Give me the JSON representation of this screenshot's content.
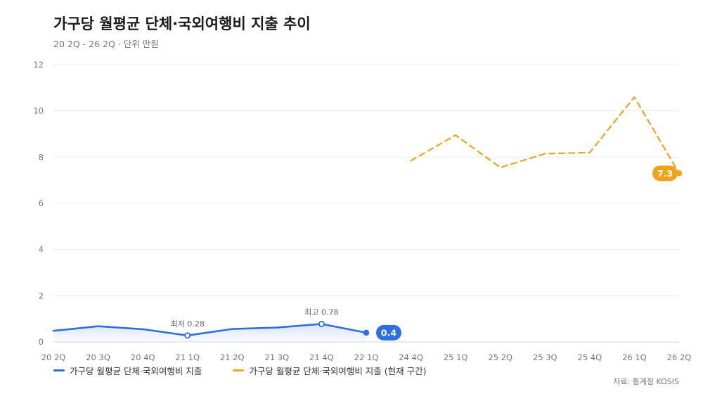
{
  "header": {
    "title": "가구당 월평균 단체·국외여행비 지출 추이",
    "subtitle": "20 2Q - 26 2Q · 단위 만원"
  },
  "footer": {
    "source": "자료: 통계청 KOSIS"
  },
  "colors": {
    "blue": "#2f6fe4",
    "orange": "#f0a21c",
    "grid": "#ececec",
    "axis_text": "#777777"
  },
  "chart_data": {
    "type": "line",
    "categories": [
      "20 2Q",
      "20 3Q",
      "20 4Q",
      "21 1Q",
      "21 2Q",
      "21 3Q",
      "21 4Q",
      "22 1Q",
      "24 4Q",
      "25 1Q",
      "25 2Q",
      "25 3Q",
      "25 4Q",
      "26 1Q",
      "26 2Q"
    ],
    "ylim": [
      0,
      12
    ],
    "yticks": [
      0,
      2,
      4,
      6,
      8,
      10,
      12
    ],
    "grid": true,
    "legend_position": "bottom-left",
    "series": [
      {
        "name": "가구당 월평균 단체·국외여행비 지출",
        "color": "#2f6fe4",
        "style": "solid",
        "area": true,
        "values": [
          0.48,
          0.68,
          0.55,
          0.28,
          0.56,
          0.62,
          0.78,
          0.4,
          null,
          null,
          null,
          null,
          null,
          null,
          null
        ]
      },
      {
        "name": "가구당 월평균 단체·국외여행비 지출 (현재 구간)",
        "color": "#f0a21c",
        "style": "dashed",
        "area": false,
        "values": [
          null,
          null,
          null,
          null,
          null,
          null,
          null,
          null,
          7.85,
          8.95,
          7.55,
          8.15,
          8.2,
          10.6,
          7.3
        ]
      }
    ],
    "annotations": [
      {
        "text": "최저 0.28",
        "series": 0,
        "index": 3
      },
      {
        "text": "최고 0.78",
        "series": 0,
        "index": 6
      }
    ],
    "end_labels": [
      {
        "text": "0.4",
        "series": 0,
        "index": 7
      },
      {
        "text": "7.3",
        "series": 1,
        "index": 14
      }
    ]
  }
}
